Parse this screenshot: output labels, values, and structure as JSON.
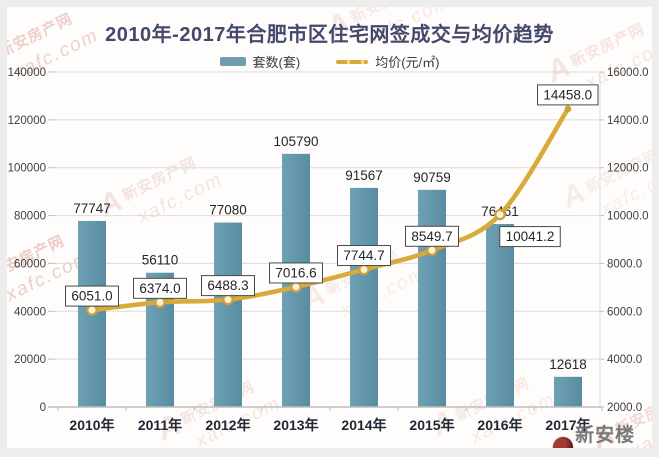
{
  "title": "2010年-2017年合肥市区住宅网签成交与均价趋势",
  "legend": [
    {
      "label": "套数(套)",
      "marker": "bar-swatch"
    },
    {
      "label": "均价(元/㎡)",
      "marker": "line-swatch"
    }
  ],
  "watermarks": {
    "site_name": "新安房产网",
    "site_url": "xafc.com",
    "site_logo": "A",
    "wechat_name": "新安楼市"
  },
  "colors": {
    "bar": "#6496ab",
    "bar_light": "#6fa1b5",
    "bar_dark": "#588ca2",
    "line": "#d8ab39",
    "marker_ring": "#cfa134",
    "marker_fill": "#f8f2dc",
    "title": "#44486d",
    "grid": "#dcdcdc",
    "axis": "#bfbfbf",
    "tick_text": "#3f3f3f",
    "x_label_text": "#1e2633",
    "value_text": "#262626",
    "box_border": "#4a4a4a",
    "watermark_red": "#c65a49",
    "wechat_gray": "#6f6f6f"
  },
  "chart_data": {
    "type": "combo",
    "title": "2010年-2017年合肥市区住宅网签成交与均价趋势",
    "categories": [
      "2010年",
      "2011年",
      "2012年",
      "2013年",
      "2014年",
      "2015年",
      "2016年",
      "2017年"
    ],
    "series": [
      {
        "name": "套数(套)",
        "type": "bar",
        "axis": "left",
        "values": [
          77747,
          56110,
          77080,
          105790,
          91567,
          90759,
          76461,
          12618
        ],
        "labels": [
          "77747",
          "56110",
          "77080",
          "105790",
          "91567",
          "90759",
          "76461",
          "12618"
        ]
      },
      {
        "name": "均价(元/㎡)",
        "type": "line",
        "axis": "right",
        "values": [
          6051.0,
          6374.0,
          6488.3,
          7016.6,
          7744.7,
          8549.7,
          10041.2,
          14458.0
        ],
        "labels": [
          "6051.0",
          "6374.0",
          "6488.3",
          "7016.6",
          "7744.7",
          "8549.7",
          "10041.2",
          "14458.0"
        ]
      }
    ],
    "left_axis": {
      "min": 0,
      "max": 140000,
      "step": 20000,
      "tick_labels": [
        "140000",
        "120000",
        "100000",
        "80000",
        "60000",
        "40000",
        "20000",
        "0"
      ]
    },
    "right_axis": {
      "min": 2000,
      "max": 16000,
      "step": 2000,
      "tick_labels": [
        "16000.0",
        "14000.0",
        "12000.0",
        "10000.0",
        "8000.0",
        "6000.0",
        "4000.0",
        "2000.0"
      ]
    },
    "grid": true,
    "legend_position": "top",
    "line_label_below_index": 6
  }
}
